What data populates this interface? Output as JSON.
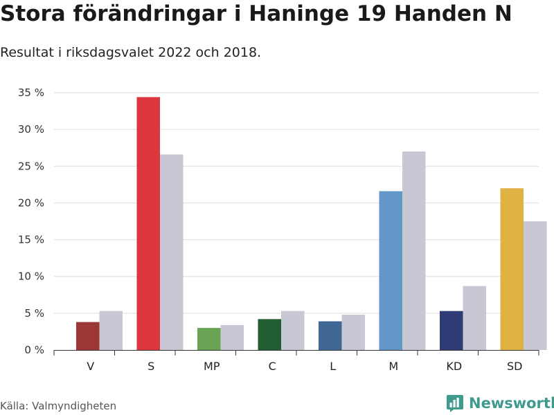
{
  "header": {
    "title": "Stora förändringar i Haninge 19 Handen N",
    "subtitle": "Resultat i riksdagsvalet 2022 och 2018."
  },
  "footer": {
    "source": "Källa: Valmyndigheten",
    "brand": "Newsworthy",
    "brand_icon": "newsworthy-bar-chart-logo-icon"
  },
  "colors": {
    "previous_year": "#c8c8d4",
    "grid": "#dddddd",
    "brand": "#3f9a8e"
  },
  "chart_data": {
    "type": "bar",
    "title": "Stora förändringar i Haninge 19 Handen N",
    "subtitle": "Resultat i riksdagsvalet 2022 och 2018.",
    "categories": [
      "V",
      "S",
      "MP",
      "C",
      "L",
      "M",
      "KD",
      "SD"
    ],
    "category_colors": [
      "#9b3734",
      "#dc363f",
      "#67a352",
      "#235d34",
      "#416894",
      "#6297c8",
      "#2f3b75",
      "#dfb244"
    ],
    "series": [
      {
        "values": [
          3.8,
          34.4,
          3.0,
          4.2,
          3.9,
          21.6,
          5.3,
          22.0
        ]
      },
      {
        "values": [
          5.3,
          26.6,
          3.4,
          5.3,
          4.8,
          27.0,
          8.7,
          17.5
        ]
      }
    ],
    "ylim": [
      0,
      35
    ],
    "yticks": [
      0,
      5,
      10,
      15,
      20,
      25,
      30,
      35
    ],
    "ytick_labels": [
      "0 %",
      "5 %",
      "10 %",
      "15 %",
      "20 %",
      "25 %",
      "30 %",
      "35 %"
    ],
    "xlabel": "",
    "ylabel": "",
    "grid": true,
    "legend": "none"
  }
}
